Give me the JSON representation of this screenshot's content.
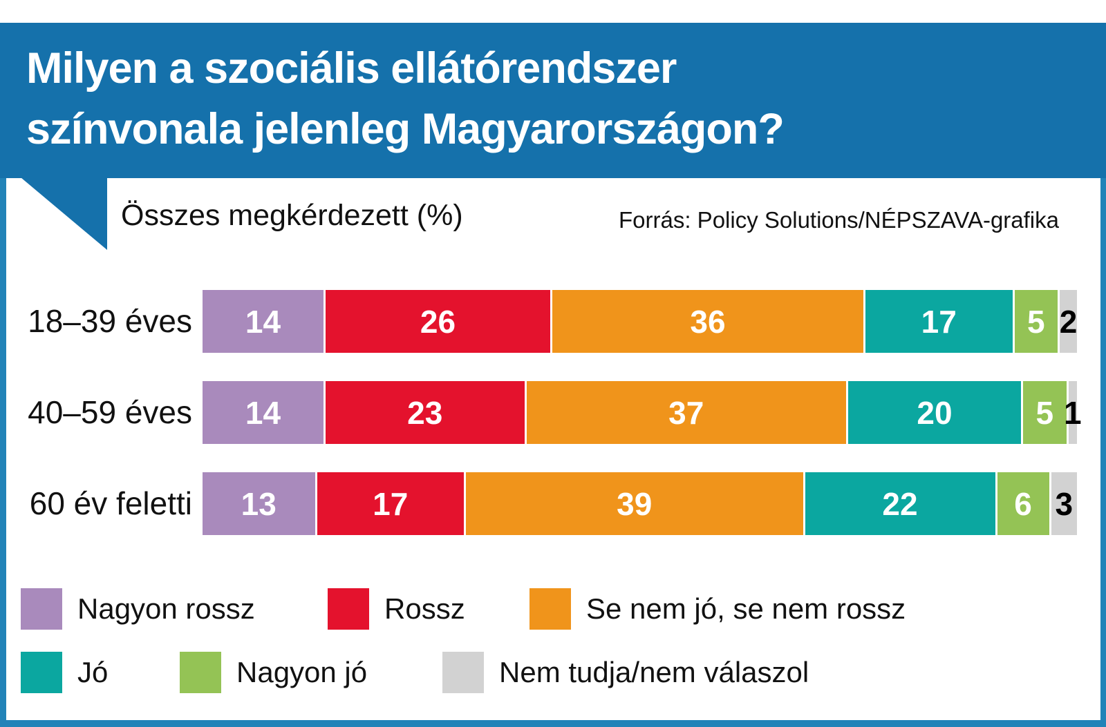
{
  "header": {
    "title_line1": "Milyen a szociális ellátórendszer",
    "title_line2": "színvonala jelenleg Magyarországon?"
  },
  "subheader": {
    "subtitle": "Összes megkérdezett (%)",
    "source": "Forrás: Policy Solutions/NÉPSZAVA-grafika"
  },
  "colors": {
    "header_blue": "#1571ab",
    "frame_blue": "#2283b8",
    "very_bad": "#a98abc",
    "bad": "#e4122d",
    "neutral": "#f0941b",
    "good": "#0ba7a0",
    "very_good": "#94c355",
    "dk": "#d2d2d2"
  },
  "chart_data": {
    "type": "bar",
    "orientation": "horizontal-stacked",
    "title": "Milyen a szociális ellátórendszer színvonala jelenleg Magyarországon?",
    "subtitle": "Összes megkérdezett (%)",
    "source": "Forrás: Policy Solutions/NÉPSZAVA-grafika",
    "categories": [
      "18–39 éves",
      "40–59 éves",
      "60 év feletti"
    ],
    "series": [
      {
        "name": "Nagyon rossz",
        "color_key": "very_bad",
        "values": [
          14,
          14,
          13
        ]
      },
      {
        "name": "Rossz",
        "color_key": "bad",
        "values": [
          26,
          23,
          17
        ]
      },
      {
        "name": "Se nem jó, se nem rossz",
        "color_key": "neutral",
        "values": [
          36,
          37,
          39
        ]
      },
      {
        "name": "Jó",
        "color_key": "good",
        "values": [
          17,
          20,
          22
        ]
      },
      {
        "name": "Nagyon jó",
        "color_key": "very_good",
        "values": [
          5,
          5,
          6
        ]
      },
      {
        "name": "Nem tudja/nem válaszol",
        "color_key": "dk",
        "values": [
          2,
          1,
          3
        ]
      }
    ],
    "xlim": [
      0,
      100
    ],
    "value_labels": "inside",
    "grid": false,
    "legend_position": "bottom"
  }
}
